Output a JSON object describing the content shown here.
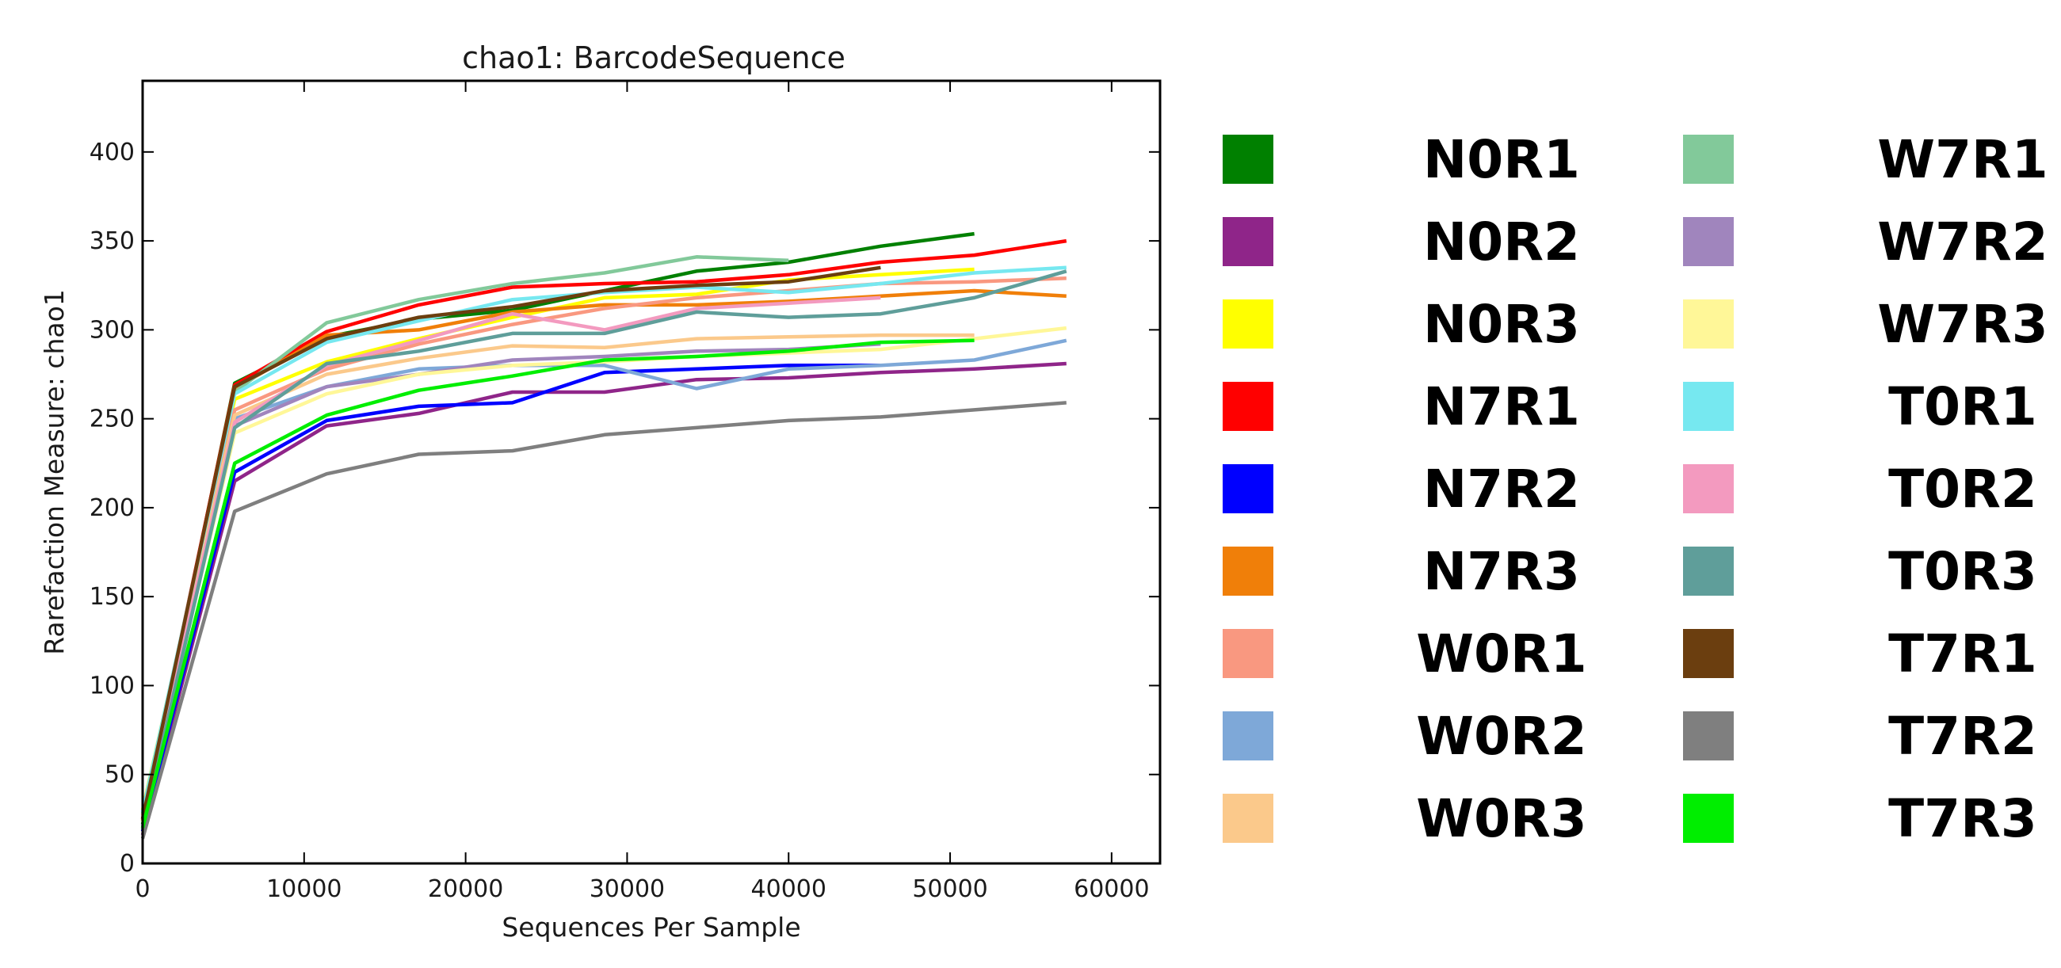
{
  "chart_data": {
    "type": "line",
    "title": "chao1: BarcodeSequence",
    "xlabel": "Sequences Per Sample",
    "ylabel": "Rarefaction Measure: chao1",
    "xlim": [
      0,
      63000
    ],
    "ylim": [
      0,
      440
    ],
    "xticks": [
      0,
      10000,
      20000,
      30000,
      40000,
      50000,
      60000
    ],
    "yticks": [
      0,
      50,
      100,
      150,
      200,
      250,
      300,
      350,
      400
    ],
    "grid": false,
    "legend_placement": "right",
    "series": [
      {
        "name": "N0R1",
        "color": "#008000",
        "points": [
          [
            0,
            22
          ],
          [
            5700,
            270
          ],
          [
            11400,
            296
          ],
          [
            17100,
            306
          ],
          [
            22900,
            311
          ],
          [
            28600,
            322
          ],
          [
            34300,
            333
          ],
          [
            40000,
            338
          ],
          [
            45700,
            347
          ],
          [
            51500,
            354
          ]
        ]
      },
      {
        "name": "N0R2",
        "color": "#8f2589",
        "points": [
          [
            0,
            16
          ],
          [
            5700,
            215
          ],
          [
            11400,
            246
          ],
          [
            17100,
            253
          ],
          [
            22900,
            265
          ],
          [
            28600,
            265
          ],
          [
            34300,
            272
          ],
          [
            40000,
            273
          ],
          [
            45700,
            276
          ],
          [
            51500,
            278
          ],
          [
            57200,
            281
          ]
        ]
      },
      {
        "name": "N0R3",
        "color": "#ffff00",
        "points": [
          [
            0,
            30
          ],
          [
            5700,
            261
          ],
          [
            11400,
            282
          ],
          [
            17100,
            295
          ],
          [
            22900,
            307
          ],
          [
            28600,
            318
          ],
          [
            34300,
            320
          ],
          [
            40000,
            328
          ],
          [
            45700,
            331
          ],
          [
            51500,
            334
          ]
        ]
      },
      {
        "name": "N7R1",
        "color": "#ff0000",
        "points": [
          [
            0,
            25
          ],
          [
            5700,
            269
          ],
          [
            11400,
            299
          ],
          [
            17100,
            314
          ],
          [
            22900,
            324
          ],
          [
            28600,
            326
          ],
          [
            34300,
            327
          ],
          [
            40000,
            331
          ],
          [
            45700,
            338
          ],
          [
            51500,
            342
          ],
          [
            57200,
            350
          ]
        ]
      },
      {
        "name": "N7R2",
        "color": "#0000ff",
        "points": [
          [
            0,
            18
          ],
          [
            5700,
            220
          ],
          [
            11400,
            249
          ],
          [
            17100,
            257
          ],
          [
            22900,
            259
          ],
          [
            28600,
            276
          ],
          [
            34300,
            278
          ],
          [
            40000,
            280
          ],
          [
            45700,
            280
          ]
        ]
      },
      {
        "name": "N7R3",
        "color": "#f07f09",
        "points": [
          [
            0,
            24
          ],
          [
            5700,
            267
          ],
          [
            11400,
            297
          ],
          [
            17100,
            300
          ],
          [
            22900,
            310
          ],
          [
            28600,
            314
          ],
          [
            34300,
            314
          ],
          [
            40000,
            316
          ],
          [
            45700,
            319
          ],
          [
            51500,
            322
          ],
          [
            57200,
            319
          ]
        ]
      },
      {
        "name": "W0R1",
        "color": "#f99880",
        "points": [
          [
            0,
            27
          ],
          [
            5700,
            255
          ],
          [
            11400,
            278
          ],
          [
            17100,
            292
          ],
          [
            22900,
            303
          ],
          [
            28600,
            312
          ],
          [
            34300,
            318
          ],
          [
            40000,
            322
          ],
          [
            45700,
            326
          ],
          [
            51500,
            327
          ],
          [
            57200,
            329
          ]
        ]
      },
      {
        "name": "W0R2",
        "color": "#7ea8d8",
        "points": [
          [
            0,
            20
          ],
          [
            5700,
            250
          ],
          [
            11400,
            268
          ],
          [
            17100,
            278
          ],
          [
            22900,
            280
          ],
          [
            28600,
            280
          ],
          [
            34300,
            267
          ],
          [
            40000,
            278
          ],
          [
            45700,
            280
          ],
          [
            51500,
            283
          ],
          [
            57200,
            294
          ]
        ]
      },
      {
        "name": "W0R3",
        "color": "#fbc98b",
        "points": [
          [
            0,
            26
          ],
          [
            5700,
            252
          ],
          [
            11400,
            275
          ],
          [
            17100,
            284
          ],
          [
            22900,
            291
          ],
          [
            28600,
            290
          ],
          [
            34300,
            295
          ],
          [
            40000,
            296
          ],
          [
            45700,
            297
          ],
          [
            51500,
            297
          ]
        ]
      },
      {
        "name": "W7R1",
        "color": "#82c99a",
        "points": [
          [
            0,
            28
          ],
          [
            5700,
            265
          ],
          [
            11400,
            304
          ],
          [
            17100,
            317
          ],
          [
            22900,
            326
          ],
          [
            28600,
            332
          ],
          [
            34300,
            341
          ],
          [
            40000,
            339
          ]
        ]
      },
      {
        "name": "W7R2",
        "color": "#a085bd",
        "points": [
          [
            0,
            21
          ],
          [
            5700,
            246
          ],
          [
            11400,
            268
          ],
          [
            17100,
            275
          ],
          [
            22900,
            283
          ],
          [
            28600,
            285
          ],
          [
            34300,
            288
          ],
          [
            40000,
            289
          ],
          [
            45700,
            292
          ]
        ]
      },
      {
        "name": "W7R3",
        "color": "#fff798",
        "points": [
          [
            0,
            23
          ],
          [
            5700,
            242
          ],
          [
            11400,
            264
          ],
          [
            17100,
            275
          ],
          [
            22900,
            280
          ],
          [
            28600,
            282
          ],
          [
            34300,
            285
          ],
          [
            40000,
            287
          ],
          [
            45700,
            289
          ],
          [
            51500,
            295
          ],
          [
            57200,
            301
          ]
        ]
      },
      {
        "name": "T0R1",
        "color": "#76e8f0",
        "points": [
          [
            0,
            29
          ],
          [
            5700,
            264
          ],
          [
            11400,
            293
          ],
          [
            17100,
            305
          ],
          [
            22900,
            317
          ],
          [
            28600,
            321
          ],
          [
            34300,
            324
          ],
          [
            40000,
            321
          ],
          [
            45700,
            326
          ],
          [
            51500,
            332
          ],
          [
            57200,
            335
          ]
        ]
      },
      {
        "name": "T0R2",
        "color": "#f39abf",
        "points": [
          [
            0,
            26
          ],
          [
            5700,
            248
          ],
          [
            11400,
            280
          ],
          [
            17100,
            294
          ],
          [
            22900,
            309
          ],
          [
            28600,
            300
          ],
          [
            34300,
            312
          ],
          [
            40000,
            315
          ],
          [
            45700,
            318
          ]
        ]
      },
      {
        "name": "T0R3",
        "color": "#5f9e9a",
        "points": [
          [
            0,
            19
          ],
          [
            5700,
            245
          ],
          [
            11400,
            281
          ],
          [
            17100,
            288
          ],
          [
            22900,
            298
          ],
          [
            28600,
            298
          ],
          [
            34300,
            310
          ],
          [
            40000,
            307
          ],
          [
            45700,
            309
          ],
          [
            51500,
            318
          ],
          [
            57200,
            333
          ]
        ]
      },
      {
        "name": "T7R1",
        "color": "#6b3e0f",
        "points": [
          [
            0,
            25
          ],
          [
            5700,
            268
          ],
          [
            11400,
            295
          ],
          [
            17100,
            307
          ],
          [
            22900,
            313
          ],
          [
            28600,
            322
          ],
          [
            34300,
            325
          ],
          [
            40000,
            327
          ],
          [
            45700,
            335
          ]
        ]
      },
      {
        "name": "T7R2",
        "color": "#7f7f7f",
        "points": [
          [
            0,
            14
          ],
          [
            5700,
            198
          ],
          [
            11400,
            219
          ],
          [
            17100,
            230
          ],
          [
            22900,
            232
          ],
          [
            28600,
            241
          ],
          [
            34300,
            245
          ],
          [
            40000,
            249
          ],
          [
            45700,
            251
          ],
          [
            51500,
            255
          ],
          [
            57200,
            259
          ]
        ]
      },
      {
        "name": "T7R3",
        "color": "#00ee00",
        "points": [
          [
            0,
            20
          ],
          [
            5700,
            225
          ],
          [
            11400,
            252
          ],
          [
            17100,
            266
          ],
          [
            22900,
            274
          ],
          [
            28600,
            283
          ],
          [
            34300,
            285
          ],
          [
            40000,
            288
          ],
          [
            45700,
            293
          ],
          [
            51500,
            294
          ]
        ]
      }
    ]
  }
}
